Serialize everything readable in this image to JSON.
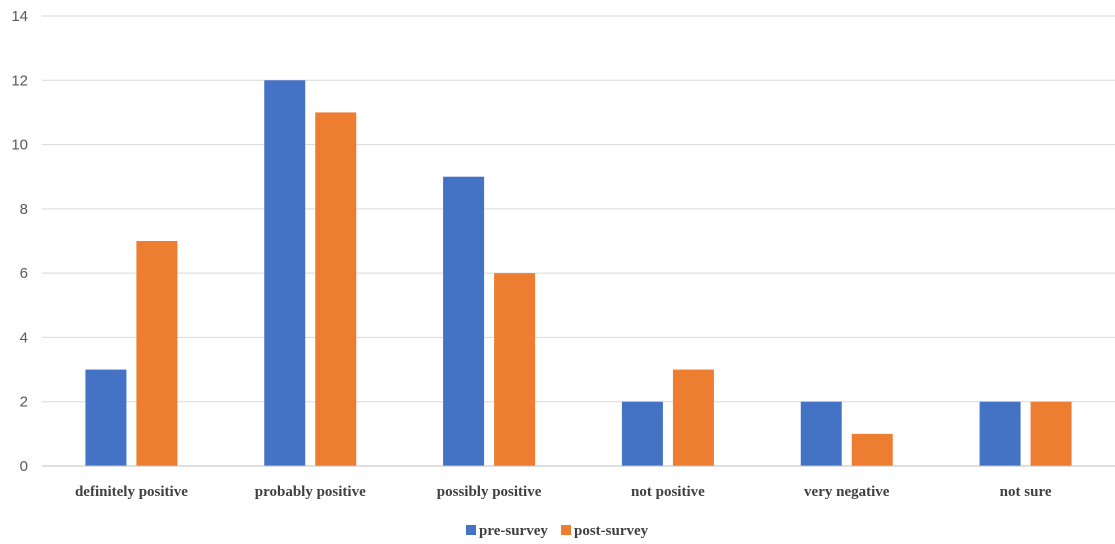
{
  "chart_data": {
    "type": "bar",
    "categories": [
      "definitely positive",
      "probably positive",
      "possibly positive",
      "not positive",
      "very negative",
      "not sure"
    ],
    "series": [
      {
        "name": "pre-survey",
        "color": "#4472C4",
        "values": [
          3,
          12,
          9,
          2,
          2,
          2
        ]
      },
      {
        "name": "post-survey",
        "color": "#ED7D31",
        "values": [
          7,
          11,
          6,
          3,
          1,
          2
        ]
      }
    ],
    "title": "",
    "xlabel": "",
    "ylabel": "",
    "ylim": [
      0,
      14
    ],
    "yticks": [
      0,
      2,
      4,
      6,
      8,
      10,
      12,
      14
    ],
    "grid": true,
    "legend_position": "bottom-center"
  }
}
